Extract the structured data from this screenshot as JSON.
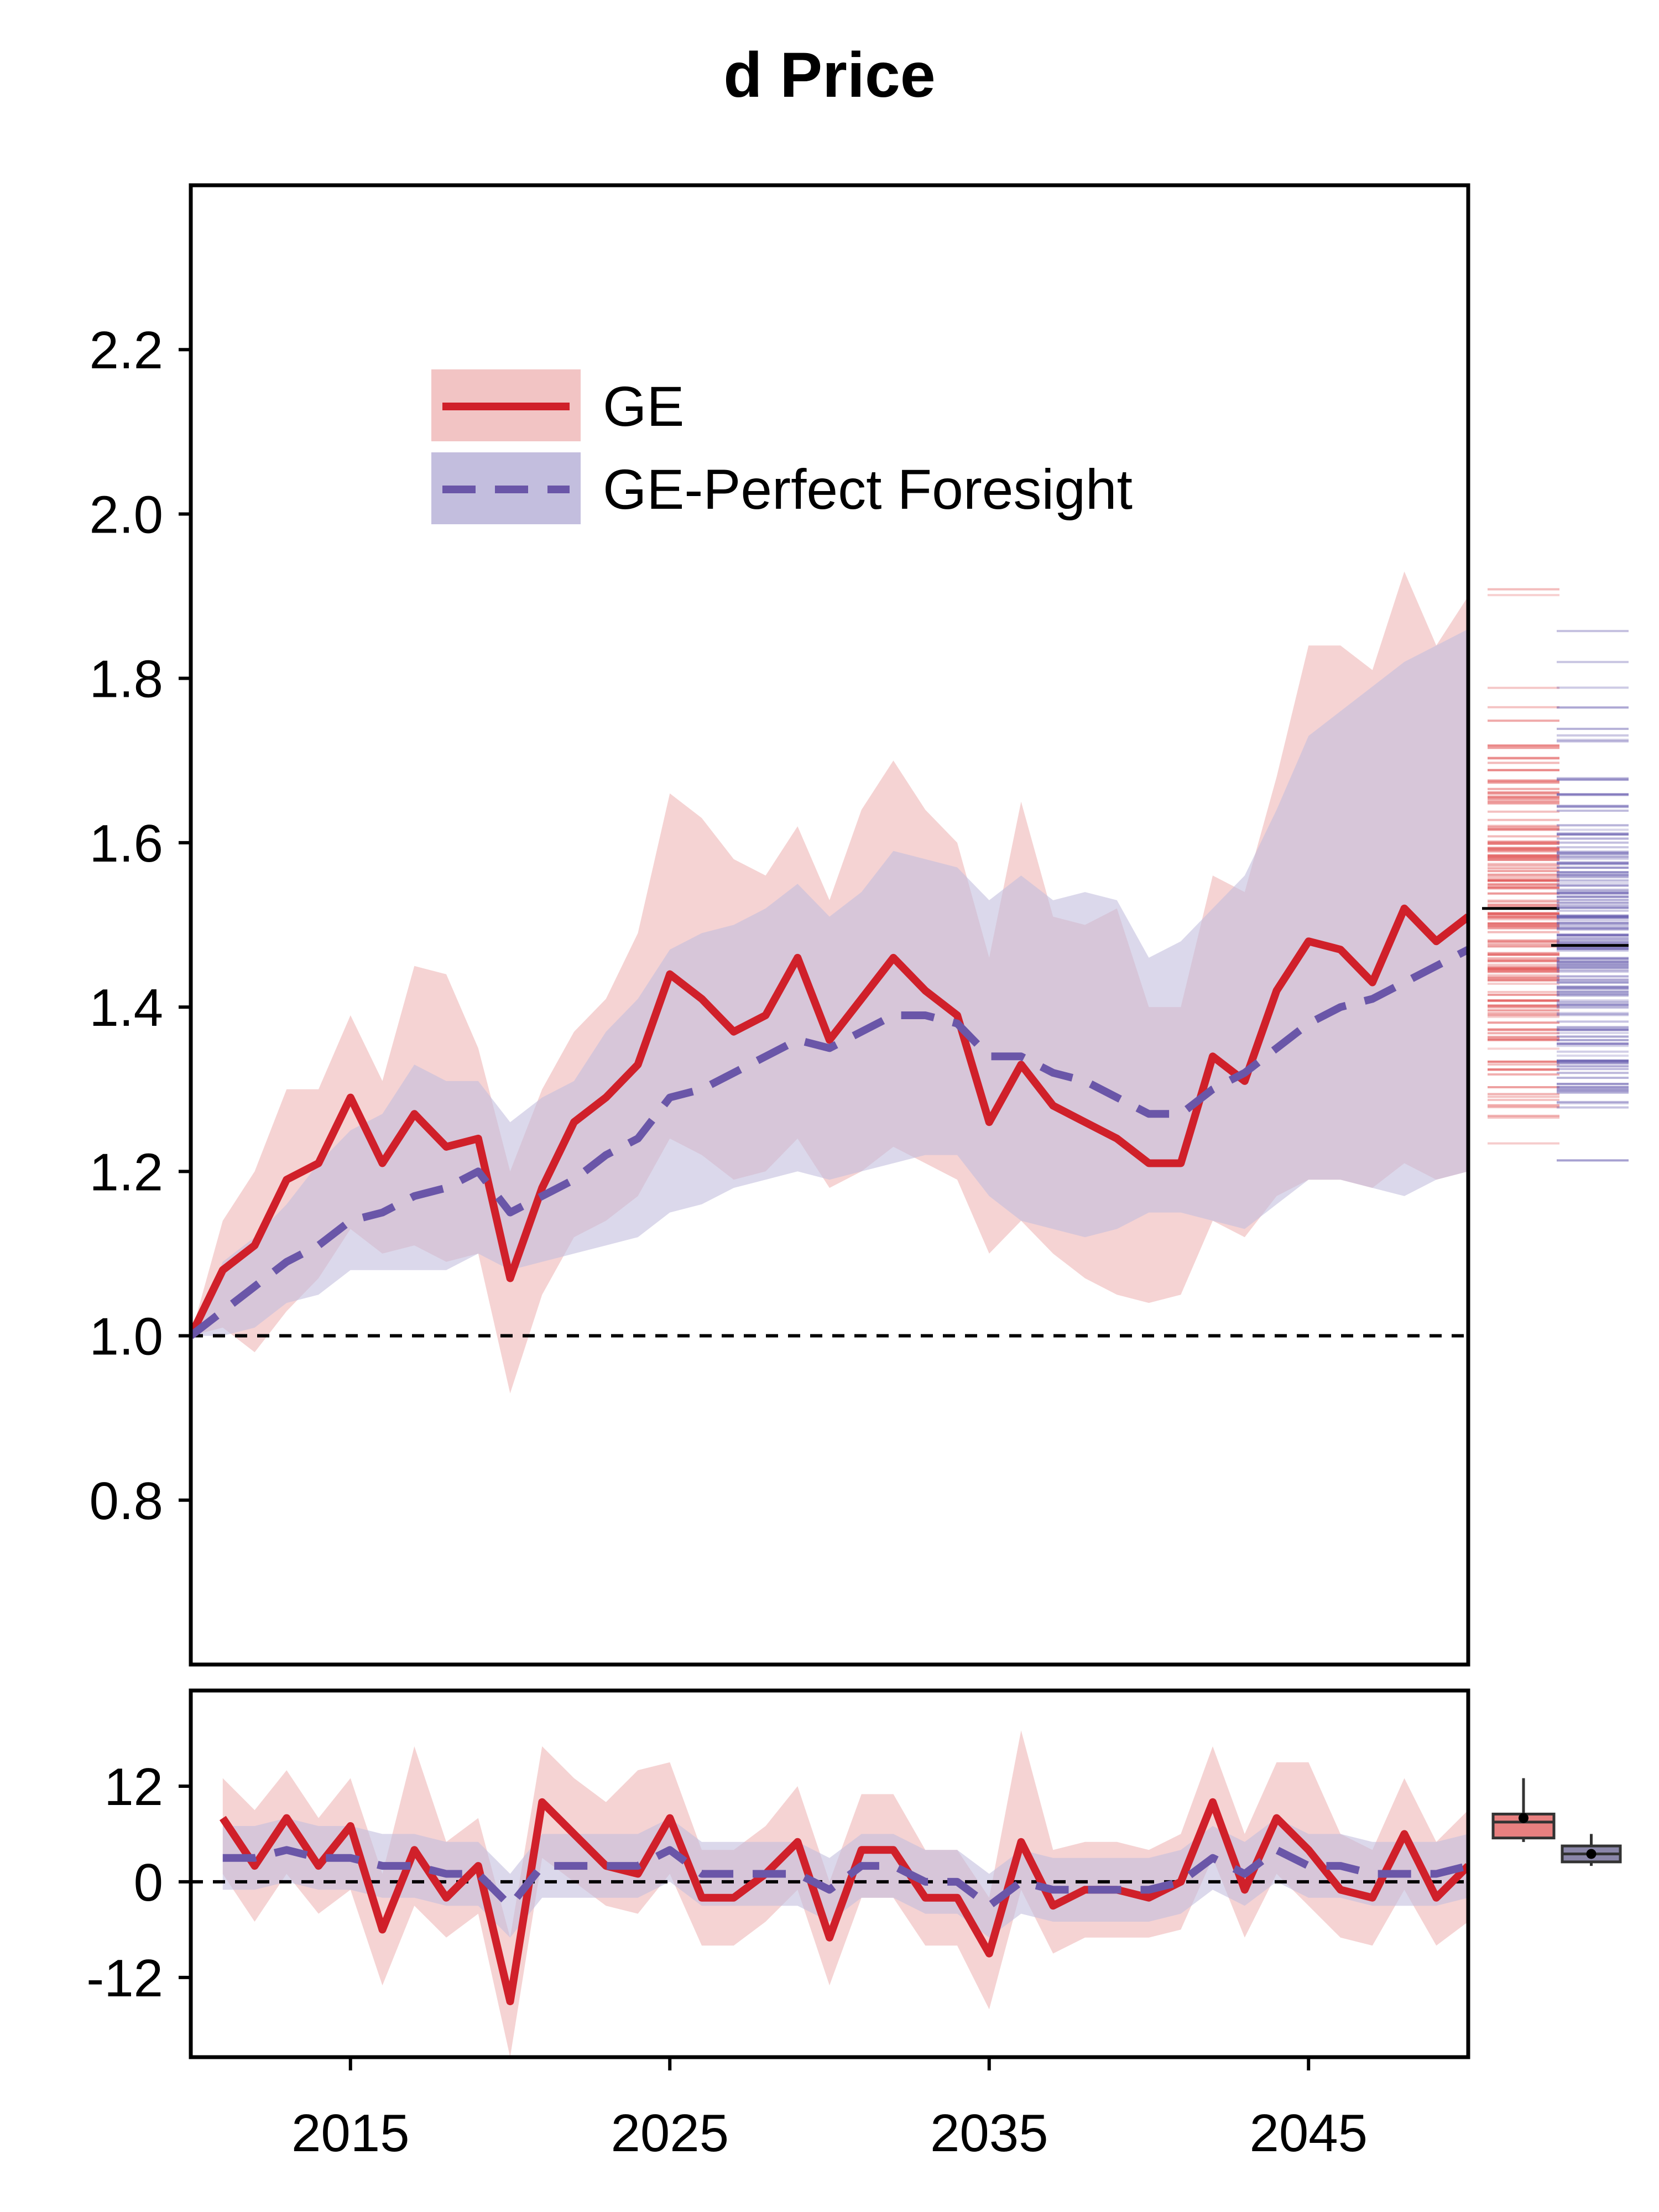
{
  "chart_data": [
    {
      "type": "line",
      "panel": "main",
      "title": "d Price",
      "xlabel": "",
      "ylabel": "",
      "xlim": [
        2010,
        2050
      ],
      "ylim": [
        0.6,
        2.4
      ],
      "yticks": [
        "0.8",
        "1.0",
        "1.2",
        "1.4",
        "1.6",
        "1.8",
        "2.0",
        "2.2"
      ],
      "reference_line": 1.0,
      "legend_position": "top-left",
      "x": [
        2010,
        2011,
        2012,
        2013,
        2014,
        2015,
        2016,
        2017,
        2018,
        2019,
        2020,
        2021,
        2022,
        2023,
        2024,
        2025,
        2026,
        2027,
        2028,
        2029,
        2030,
        2031,
        2032,
        2033,
        2034,
        2035,
        2036,
        2037,
        2038,
        2039,
        2040,
        2041,
        2042,
        2043,
        2044,
        2045,
        2046,
        2047,
        2048,
        2049,
        2050
      ],
      "series": [
        {
          "name": "GE",
          "style": "solid",
          "color": "#d0202a",
          "band_color": "#f2c4c4",
          "values": [
            1.0,
            1.08,
            1.11,
            1.19,
            1.21,
            1.29,
            1.21,
            1.27,
            1.23,
            1.24,
            1.07,
            1.18,
            1.26,
            1.29,
            1.33,
            1.44,
            1.41,
            1.37,
            1.39,
            1.46,
            1.36,
            1.41,
            1.46,
            1.42,
            1.39,
            1.26,
            1.33,
            1.28,
            1.26,
            1.24,
            1.21,
            1.21,
            1.34,
            1.31,
            1.42,
            1.48,
            1.47,
            1.43,
            1.52,
            1.48,
            1.51
          ],
          "lower": [
            1.0,
            1.01,
            0.98,
            1.03,
            1.07,
            1.13,
            1.1,
            1.11,
            1.09,
            1.1,
            0.93,
            1.05,
            1.12,
            1.14,
            1.17,
            1.24,
            1.22,
            1.19,
            1.2,
            1.24,
            1.18,
            1.2,
            1.23,
            1.21,
            1.19,
            1.1,
            1.14,
            1.1,
            1.07,
            1.05,
            1.04,
            1.05,
            1.14,
            1.12,
            1.17,
            1.19,
            1.19,
            1.18,
            1.21,
            1.19,
            1.2
          ],
          "upper": [
            1.0,
            1.14,
            1.2,
            1.3,
            1.3,
            1.39,
            1.31,
            1.45,
            1.44,
            1.35,
            1.2,
            1.3,
            1.37,
            1.41,
            1.49,
            1.66,
            1.63,
            1.58,
            1.56,
            1.62,
            1.53,
            1.64,
            1.7,
            1.64,
            1.6,
            1.46,
            1.65,
            1.51,
            1.5,
            1.52,
            1.4,
            1.4,
            1.56,
            1.54,
            1.68,
            1.84,
            1.84,
            1.81,
            1.93,
            1.84,
            1.9
          ]
        },
        {
          "name": "GE-Perfect Foresight",
          "style": "dashed",
          "color": "#6a56a8",
          "band_color": "#c3bede",
          "values": [
            1.0,
            1.03,
            1.06,
            1.09,
            1.11,
            1.14,
            1.15,
            1.17,
            1.18,
            1.2,
            1.15,
            1.17,
            1.19,
            1.22,
            1.24,
            1.29,
            1.3,
            1.32,
            1.34,
            1.36,
            1.35,
            1.37,
            1.39,
            1.39,
            1.38,
            1.34,
            1.34,
            1.32,
            1.31,
            1.29,
            1.27,
            1.27,
            1.3,
            1.32,
            1.35,
            1.38,
            1.4,
            1.41,
            1.43,
            1.45,
            1.47
          ],
          "lower": [
            1.0,
            1.0,
            1.01,
            1.04,
            1.05,
            1.08,
            1.08,
            1.08,
            1.08,
            1.1,
            1.08,
            1.09,
            1.1,
            1.11,
            1.12,
            1.15,
            1.16,
            1.18,
            1.19,
            1.2,
            1.19,
            1.2,
            1.21,
            1.22,
            1.22,
            1.17,
            1.14,
            1.13,
            1.12,
            1.13,
            1.15,
            1.15,
            1.14,
            1.13,
            1.16,
            1.19,
            1.19,
            1.18,
            1.17,
            1.19,
            1.2
          ],
          "upper": [
            1.0,
            1.09,
            1.12,
            1.16,
            1.21,
            1.25,
            1.27,
            1.33,
            1.31,
            1.31,
            1.26,
            1.29,
            1.31,
            1.37,
            1.41,
            1.47,
            1.49,
            1.5,
            1.52,
            1.55,
            1.51,
            1.54,
            1.59,
            1.58,
            1.57,
            1.53,
            1.56,
            1.53,
            1.54,
            1.53,
            1.46,
            1.48,
            1.52,
            1.56,
            1.64,
            1.73,
            1.76,
            1.79,
            1.82,
            1.84,
            1.86
          ]
        }
      ],
      "marginal_rugs": [
        {
          "series": "GE",
          "mean": 1.52,
          "range": [
            1.22,
            1.91
          ]
        },
        {
          "series": "GE-Perfect Foresight",
          "mean": 1.475,
          "range": [
            1.19,
            1.87
          ]
        }
      ]
    },
    {
      "type": "line",
      "panel": "growth",
      "title": "",
      "xlabel": "",
      "ylabel": "",
      "xlim": [
        2010,
        2050
      ],
      "ylim": [
        -22,
        24
      ],
      "yticks": [
        "-12",
        "0",
        "12"
      ],
      "xticks": [
        "2015",
        "2025",
        "2035",
        "2045"
      ],
      "reference_line": 0,
      "x": [
        2011,
        2012,
        2013,
        2014,
        2015,
        2016,
        2017,
        2018,
        2019,
        2020,
        2021,
        2022,
        2023,
        2024,
        2025,
        2026,
        2027,
        2028,
        2029,
        2030,
        2031,
        2032,
        2033,
        2034,
        2035,
        2036,
        2037,
        2038,
        2039,
        2040,
        2041,
        2042,
        2043,
        2044,
        2045,
        2046,
        2047,
        2048,
        2049,
        2050
      ],
      "series": [
        {
          "name": "GE",
          "style": "solid",
          "values": [
            8,
            2,
            8,
            2,
            7,
            -6,
            4,
            -2,
            2,
            -15,
            10,
            6,
            2,
            1,
            8,
            -2,
            -2,
            1,
            5,
            -7,
            4,
            4,
            -2,
            -2,
            -9,
            5,
            -3,
            -1,
            -1,
            -2,
            0,
            10,
            -1,
            8,
            4,
            -1,
            -2,
            6,
            -2,
            2
          ],
          "lower": [
            1,
            -5,
            1,
            -4,
            -1,
            -13,
            -3,
            -7,
            -4,
            -22,
            3,
            0,
            -3,
            -4,
            1,
            -8,
            -8,
            -5,
            -1,
            -13,
            -2,
            -2,
            -8,
            -8,
            -16,
            -1,
            -9,
            -7,
            -7,
            -7,
            -6,
            3,
            -7,
            1,
            -3,
            -7,
            -8,
            -1,
            -8,
            -5
          ],
          "upper": [
            13,
            9,
            14,
            8,
            13,
            1,
            17,
            5,
            8,
            -7,
            17,
            13,
            10,
            14,
            15,
            4,
            4,
            7,
            12,
            0,
            11,
            11,
            4,
            4,
            -2,
            19,
            4,
            5,
            5,
            4,
            6,
            17,
            6,
            15,
            15,
            6,
            4,
            13,
            5,
            9
          ]
        },
        {
          "name": "GE-Perfect Foresight",
          "style": "dashed",
          "values": [
            3,
            3,
            4,
            3,
            3,
            2,
            2,
            1,
            1,
            -3,
            2,
            2,
            2,
            2,
            4,
            1,
            1,
            1,
            1,
            -1,
            2,
            2,
            0,
            0,
            -3,
            0,
            -1,
            -1,
            -1,
            -1,
            0,
            3,
            1,
            4,
            2,
            2,
            1,
            1,
            1,
            2
          ],
          "lower": [
            -1,
            -1,
            0,
            -1,
            -1,
            -2,
            -2,
            -3,
            -3,
            -7,
            -2,
            -2,
            -2,
            -2,
            0,
            -3,
            -3,
            -3,
            -3,
            -5,
            -2,
            -2,
            -4,
            -4,
            -7,
            -4,
            -5,
            -5,
            -5,
            -5,
            -4,
            -1,
            -3,
            0,
            -2,
            -2,
            -3,
            -3,
            -3,
            -2
          ],
          "upper": [
            7,
            7,
            8,
            7,
            7,
            6,
            6,
            5,
            5,
            1,
            6,
            6,
            6,
            6,
            8,
            5,
            5,
            5,
            5,
            3,
            6,
            6,
            4,
            4,
            1,
            4,
            3,
            3,
            3,
            3,
            4,
            7,
            5,
            8,
            6,
            6,
            5,
            5,
            5,
            6
          ]
        }
      ],
      "marginal_boxes": [
        {
          "series": "GE",
          "q1": 5.5,
          "median": 7.5,
          "q3": 8.5,
          "min": 5,
          "max": 13,
          "mean": 8
        },
        {
          "series": "GE-Perfect Foresight",
          "q1": 2.5,
          "median": 3.5,
          "q3": 4.5,
          "min": 2,
          "max": 6,
          "mean": 3.5
        }
      ]
    }
  ]
}
